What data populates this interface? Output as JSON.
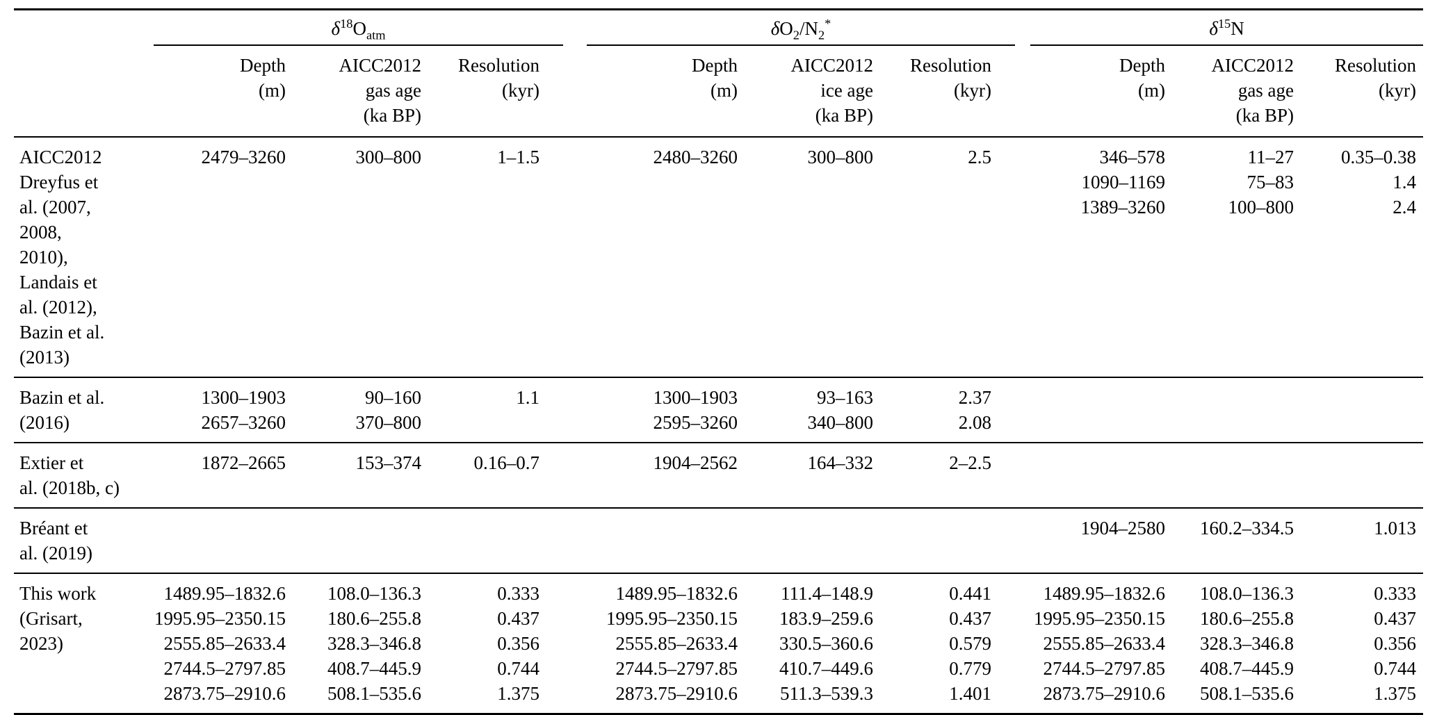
{
  "page": {
    "background": "#ffffff",
    "text_color": "#000000",
    "rule_color": "#000000"
  },
  "table": {
    "groups": [
      {
        "id": "d18o-atm",
        "label_html": "<i>δ</i><sup>18</sup>O<sub>atm</sub>",
        "columns": [
          "Depth\n(m)",
          "AICC2012\ngas age\n(ka BP)",
          "Resolution\n(kyr)"
        ]
      },
      {
        "id": "do2-n2",
        "label_html": "<i>δ</i>O<sub>2</sub>/N<sub>2</sub><sup>*</sup>",
        "columns": [
          "Depth\n(m)",
          "AICC2012\nice age\n(ka BP)",
          "Resolution\n(kyr)"
        ]
      },
      {
        "id": "d15n",
        "label_html": "<i>δ</i><sup>15</sup>N",
        "columns": [
          "Depth\n(m)",
          "AICC2012\ngas age\n(ka BP)",
          "Resolution\n(kyr)"
        ]
      }
    ],
    "rows": [
      {
        "source": "AICC2012\nDreyfus et\nal. (2007,\n2008,\n2010),\nLandais et\nal. (2012),\nBazin et al.\n(2013)",
        "groups": [
          [
            [
              "2479–3260",
              "300–800",
              "1–1.5"
            ]
          ],
          [
            [
              "2480–3260",
              "300–800",
              "2.5"
            ]
          ],
          [
            [
              "346–578",
              "11–27",
              "0.35–0.38"
            ],
            [
              "1090–1169",
              "75–83",
              "1.4"
            ],
            [
              "1389–3260",
              "100–800",
              "2.4"
            ]
          ]
        ]
      },
      {
        "source": "Bazin et al.\n(2016)",
        "groups": [
          [
            [
              "1300–1903",
              "90–160",
              "1.1"
            ],
            [
              "2657–3260",
              "370–800",
              ""
            ]
          ],
          [
            [
              "1300–1903",
              "93–163",
              "2.37"
            ],
            [
              "2595–3260",
              "340–800",
              "2.08"
            ]
          ],
          []
        ]
      },
      {
        "source": "Extier et\nal. (2018b, c)",
        "groups": [
          [
            [
              "1872–2665",
              "153–374",
              "0.16–0.7"
            ]
          ],
          [
            [
              "1904–2562",
              "164–332",
              "2–2.5"
            ]
          ],
          []
        ]
      },
      {
        "source": "Bréant et\nal. (2019)",
        "groups": [
          [],
          [],
          [
            [
              "1904–2580",
              "160.2–334.5",
              "1.013"
            ]
          ]
        ]
      },
      {
        "source": "This work\n(Grisart,\n2023)",
        "groups": [
          [
            [
              "1489.95–1832.6",
              "108.0–136.3",
              "0.333"
            ],
            [
              "1995.95–2350.15",
              "180.6–255.8",
              "0.437"
            ],
            [
              "2555.85–2633.4",
              "328.3–346.8",
              "0.356"
            ],
            [
              "2744.5–2797.85",
              "408.7–445.9",
              "0.744"
            ],
            [
              "2873.75–2910.6",
              "508.1–535.6",
              "1.375"
            ]
          ],
          [
            [
              "1489.95–1832.6",
              "111.4–148.9",
              "0.441"
            ],
            [
              "1995.95–2350.15",
              "183.9–259.6",
              "0.437"
            ],
            [
              "2555.85–2633.4",
              "330.5–360.6",
              "0.579"
            ],
            [
              "2744.5–2797.85",
              "410.7–449.6",
              "0.779"
            ],
            [
              "2873.75–2910.6",
              "511.3–539.3",
              "1.401"
            ]
          ],
          [
            [
              "1489.95–1832.6",
              "108.0–136.3",
              "0.333"
            ],
            [
              "1995.95–2350.15",
              "180.6–255.8",
              "0.437"
            ],
            [
              "2555.85–2633.4",
              "328.3–346.8",
              "0.356"
            ],
            [
              "2744.5–2797.85",
              "408.7–445.9",
              "0.744"
            ],
            [
              "2873.75–2910.6",
              "508.1–535.6",
              "1.375"
            ]
          ]
        ]
      }
    ]
  }
}
